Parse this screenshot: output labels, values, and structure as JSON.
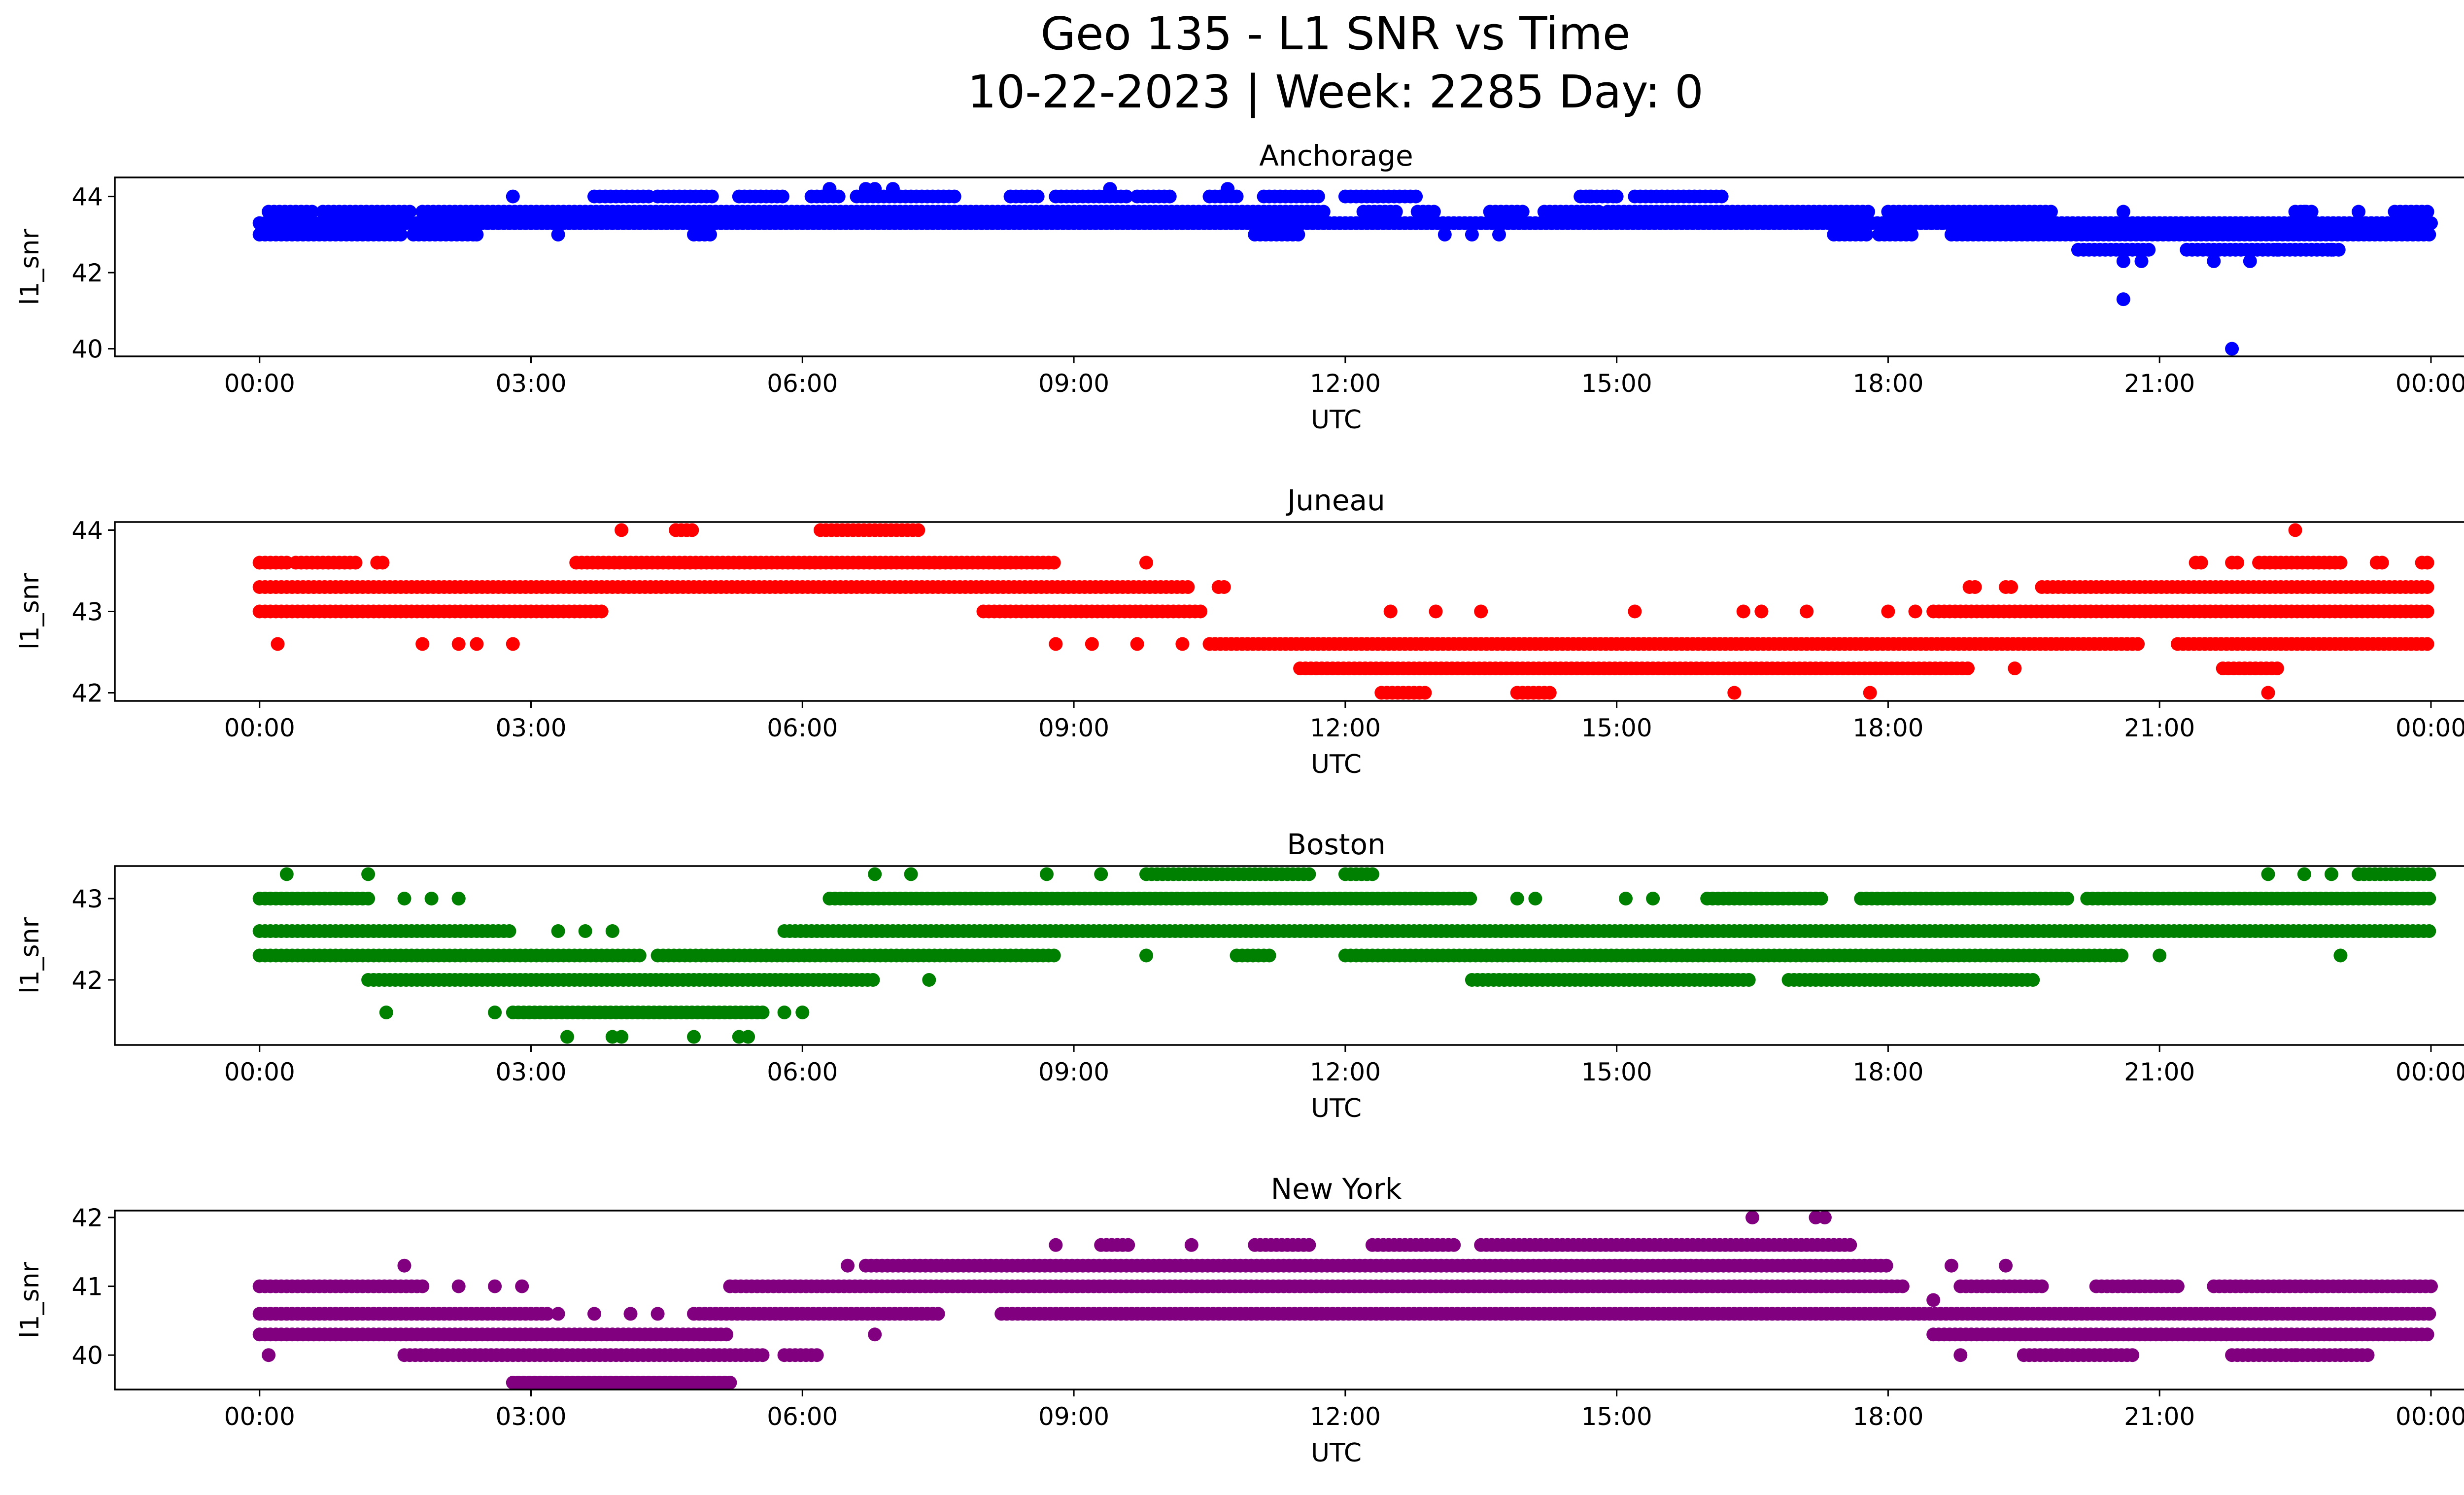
{
  "figure": {
    "title_line1": "Geo 135 - L1 SNR vs Time",
    "title_line2": "10-22-2023 | Week: 2285 Day: 0"
  },
  "chart_data": [
    {
      "type": "scatter",
      "title": "Anchorage",
      "xlabel": "UTC",
      "ylabel": "l1_snr",
      "color": "#0000ff",
      "xlim_hours": [
        -1.6,
        25.4
      ],
      "ylim": [
        39.8,
        44.5
      ],
      "yticks": [
        40,
        42,
        44
      ],
      "xticks": [
        "00:00",
        "03:00",
        "06:00",
        "09:00",
        "12:00",
        "15:00",
        "18:00",
        "21:00",
        "00:00"
      ],
      "bands": [
        {
          "y": 43.0,
          "segments": [
            [
              0.0,
              1.6
            ],
            [
              1.7,
              2.4
            ],
            [
              4.8,
              5.0
            ],
            [
              11.0,
              11.5
            ],
            [
              17.4,
              17.8
            ],
            [
              17.9,
              18.3
            ],
            [
              18.7,
              24.0
            ]
          ]
        },
        {
          "y": 43.3,
          "segments": [
            [
              0.0,
              24.0
            ]
          ]
        },
        {
          "y": 43.6,
          "segments": [
            [
              0.1,
              0.6
            ],
            [
              0.7,
              1.7
            ],
            [
              1.8,
              11.8
            ],
            [
              12.2,
              12.6
            ],
            [
              12.8,
              13.0
            ],
            [
              13.6,
              14.0
            ],
            [
              14.2,
              14.8
            ],
            [
              14.9,
              17.8
            ],
            [
              18.0,
              19.8
            ],
            [
              22.5,
              22.7
            ],
            [
              23.6,
              24.0
            ]
          ]
        },
        {
          "y": 44.0,
          "segments": [
            [
              3.7,
              4.3
            ],
            [
              4.4,
              5.0
            ],
            [
              5.3,
              5.8
            ],
            [
              6.1,
              6.4
            ],
            [
              6.6,
              7.7
            ],
            [
              8.3,
              8.6
            ],
            [
              8.8,
              9.6
            ],
            [
              9.7,
              10.1
            ],
            [
              10.5,
              10.8
            ],
            [
              11.1,
              11.7
            ],
            [
              12.0,
              12.8
            ],
            [
              14.6,
              15.0
            ],
            [
              15.2,
              16.2
            ]
          ]
        },
        {
          "y": 42.6,
          "segments": [
            [
              20.1,
              20.9
            ],
            [
              21.3,
              23.0
            ]
          ]
        }
      ],
      "points": [
        [
          2.8,
          44.0
        ],
        [
          3.3,
          43.0
        ],
        [
          2.4,
          43.0
        ],
        [
          6.3,
          44.2
        ],
        [
          6.7,
          44.2
        ],
        [
          6.8,
          44.2
        ],
        [
          7.0,
          44.2
        ],
        [
          9.4,
          44.2
        ],
        [
          10.7,
          44.2
        ],
        [
          13.1,
          43.0
        ],
        [
          13.4,
          43.0
        ],
        [
          13.7,
          43.0
        ],
        [
          14.7,
          44.0
        ],
        [
          15.0,
          44.0
        ],
        [
          20.6,
          43.6
        ],
        [
          20.6,
          42.3
        ],
        [
          20.8,
          42.3
        ],
        [
          21.6,
          42.3
        ],
        [
          22.0,
          42.3
        ],
        [
          22.3,
          42.6
        ],
        [
          20.6,
          41.3
        ],
        [
          21.8,
          40.0
        ],
        [
          22.6,
          43.6
        ],
        [
          22.9,
          42.6
        ],
        [
          23.2,
          43.6
        ]
      ]
    },
    {
      "type": "scatter",
      "title": "Juneau",
      "xlabel": "UTC",
      "ylabel": "l1_snr",
      "color": "#ff0000",
      "xlim_hours": [
        -1.6,
        25.4
      ],
      "ylim": [
        41.9,
        44.1
      ],
      "yticks": [
        42,
        43,
        44
      ],
      "xticks": [
        "00:00",
        "03:00",
        "06:00",
        "09:00",
        "12:00",
        "15:00",
        "18:00",
        "21:00",
        "00:00"
      ],
      "bands": [
        {
          "y": 43.6,
          "segments": [
            [
              0.0,
              0.3
            ],
            [
              0.4,
              1.1
            ],
            [
              1.3,
              1.4
            ],
            [
              3.5,
              8.8
            ],
            [
              21.4,
              21.5
            ],
            [
              21.8,
              21.9
            ],
            [
              22.1,
              23.0
            ],
            [
              23.4,
              23.5
            ],
            [
              23.9,
              24.0
            ]
          ]
        },
        {
          "y": 43.3,
          "segments": [
            [
              0.0,
              10.3
            ],
            [
              10.6,
              10.7
            ],
            [
              18.9,
              19.0
            ],
            [
              19.3,
              19.4
            ],
            [
              19.7,
              24.0
            ]
          ]
        },
        {
          "y": 43.0,
          "segments": [
            [
              0.0,
              3.8
            ],
            [
              8.0,
              10.4
            ],
            [
              18.5,
              24.0
            ]
          ]
        },
        {
          "y": 42.6,
          "segments": [
            [
              10.5,
              20.8
            ],
            [
              21.2,
              24.0
            ]
          ]
        },
        {
          "y": 42.3,
          "segments": [
            [
              11.5,
              18.9
            ],
            [
              21.7,
              22.3
            ]
          ]
        },
        {
          "y": 44.0,
          "segments": [
            [
              4.6,
              4.8
            ],
            [
              6.2,
              7.3
            ]
          ]
        },
        {
          "y": 42.0,
          "segments": [
            [
              12.4,
              12.9
            ],
            [
              13.9,
              14.3
            ]
          ]
        }
      ],
      "points": [
        [
          0.2,
          42.6
        ],
        [
          1.8,
          42.6
        ],
        [
          2.2,
          42.6
        ],
        [
          2.4,
          42.6
        ],
        [
          2.8,
          42.6
        ],
        [
          4.0,
          44.0
        ],
        [
          4.6,
          44.0
        ],
        [
          9.8,
          43.6
        ],
        [
          10.6,
          43.3
        ],
        [
          8.8,
          42.6
        ],
        [
          9.2,
          42.6
        ],
        [
          9.7,
          42.6
        ],
        [
          10.2,
          42.6
        ],
        [
          12.5,
          43.0
        ],
        [
          13.0,
          43.0
        ],
        [
          13.5,
          43.0
        ],
        [
          15.2,
          43.0
        ],
        [
          16.4,
          43.0
        ],
        [
          16.6,
          43.0
        ],
        [
          17.1,
          43.0
        ],
        [
          18.0,
          43.0
        ],
        [
          18.3,
          43.0
        ],
        [
          19.4,
          42.3
        ],
        [
          16.3,
          42.0
        ],
        [
          17.8,
          42.0
        ],
        [
          22.2,
          42.0
        ],
        [
          22.5,
          44.0
        ]
      ]
    },
    {
      "type": "scatter",
      "title": "Boston",
      "xlabel": "UTC",
      "ylabel": "l1_snr",
      "color": "#008000",
      "xlim_hours": [
        -1.6,
        25.4
      ],
      "ylim": [
        41.2,
        43.4
      ],
      "yticks": [
        42,
        43
      ],
      "xticks": [
        "00:00",
        "03:00",
        "06:00",
        "09:00",
        "12:00",
        "15:00",
        "18:00",
        "21:00",
        "00:00"
      ],
      "bands": [
        {
          "y": 43.0,
          "segments": [
            [
              0.0,
              1.2
            ],
            [
              6.3,
              13.4
            ],
            [
              16.0,
              17.3
            ],
            [
              17.7,
              20.0
            ],
            [
              20.2,
              24.0
            ]
          ]
        },
        {
          "y": 42.6,
          "segments": [
            [
              0.0,
              2.8
            ],
            [
              5.8,
              24.0
            ]
          ]
        },
        {
          "y": 42.3,
          "segments": [
            [
              0.0,
              4.2
            ],
            [
              4.4,
              8.8
            ],
            [
              10.8,
              11.2
            ],
            [
              12.0,
              20.6
            ]
          ]
        },
        {
          "y": 42.0,
          "segments": [
            [
              1.2,
              6.8
            ],
            [
              13.4,
              16.5
            ],
            [
              16.9,
              19.6
            ]
          ]
        },
        {
          "y": 41.6,
          "segments": [
            [
              2.8,
              5.6
            ]
          ]
        },
        {
          "y": 43.3,
          "segments": [
            [
              9.8,
              11.6
            ],
            [
              12.0,
              12.3
            ],
            [
              23.2,
              24.0
            ]
          ]
        }
      ],
      "points": [
        [
          0.3,
          43.3
        ],
        [
          1.2,
          43.3
        ],
        [
          6.8,
          43.3
        ],
        [
          7.2,
          43.3
        ],
        [
          8.7,
          43.3
        ],
        [
          9.3,
          43.3
        ],
        [
          22.2,
          43.3
        ],
        [
          22.6,
          43.3
        ],
        [
          22.9,
          43.3
        ],
        [
          1.6,
          43.0
        ],
        [
          1.9,
          43.0
        ],
        [
          2.2,
          43.0
        ],
        [
          2.2,
          43.0
        ],
        [
          1.4,
          41.6
        ],
        [
          2.6,
          41.6
        ],
        [
          5.8,
          41.6
        ],
        [
          6.0,
          41.6
        ],
        [
          3.4,
          41.3
        ],
        [
          3.9,
          41.3
        ],
        [
          4.0,
          41.3
        ],
        [
          4.8,
          41.3
        ],
        [
          5.3,
          41.3
        ],
        [
          5.4,
          41.3
        ],
        [
          7.4,
          42.0
        ],
        [
          9.8,
          42.3
        ],
        [
          13.9,
          43.0
        ],
        [
          14.1,
          43.0
        ],
        [
          15.1,
          43.0
        ],
        [
          15.4,
          43.0
        ],
        [
          3.3,
          42.6
        ],
        [
          3.6,
          42.6
        ],
        [
          3.9,
          42.6
        ],
        [
          21.0,
          42.3
        ],
        [
          23.0,
          42.3
        ]
      ]
    },
    {
      "type": "scatter",
      "title": "New York",
      "xlabel": "UTC",
      "ylabel": "l1_snr",
      "color": "#800080",
      "xlim_hours": [
        -1.6,
        25.4
      ],
      "ylim": [
        39.5,
        42.1
      ],
      "yticks": [
        40,
        41,
        42
      ],
      "xticks": [
        "00:00",
        "03:00",
        "06:00",
        "09:00",
        "12:00",
        "15:00",
        "18:00",
        "21:00",
        "00:00"
      ],
      "bands": [
        {
          "y": 41.0,
          "segments": [
            [
              0.0,
              1.8
            ],
            [
              5.2,
              18.2
            ],
            [
              18.8,
              19.7
            ],
            [
              20.3,
              21.2
            ],
            [
              21.6,
              24.0
            ]
          ]
        },
        {
          "y": 40.6,
          "segments": [
            [
              0.0,
              3.2
            ],
            [
              4.8,
              7.5
            ],
            [
              8.2,
              24.0
            ]
          ]
        },
        {
          "y": 40.3,
          "segments": [
            [
              0.0,
              5.2
            ],
            [
              18.5,
              24.0
            ]
          ]
        },
        {
          "y": 40.0,
          "segments": [
            [
              1.6,
              5.6
            ],
            [
              5.8,
              6.2
            ],
            [
              19.5,
              20.7
            ],
            [
              21.8,
              23.3
            ]
          ]
        },
        {
          "y": 39.6,
          "segments": [
            [
              2.8,
              5.2
            ]
          ]
        },
        {
          "y": 41.3,
          "segments": [
            [
              6.7,
              18.0
            ]
          ]
        },
        {
          "y": 41.6,
          "segments": [
            [
              9.3,
              9.6
            ],
            [
              11.0,
              11.6
            ],
            [
              12.3,
              13.2
            ],
            [
              13.5,
              17.6
            ]
          ]
        }
      ],
      "points": [
        [
          0.1,
          40.0
        ],
        [
          1.6,
          41.3
        ],
        [
          2.2,
          41.0
        ],
        [
          2.6,
          41.0
        ],
        [
          2.9,
          41.0
        ],
        [
          3.7,
          40.6
        ],
        [
          3.3,
          40.6
        ],
        [
          4.1,
          40.6
        ],
        [
          4.4,
          40.6
        ],
        [
          6.5,
          41.3
        ],
        [
          6.8,
          40.3
        ],
        [
          8.8,
          41.6
        ],
        [
          10.3,
          41.6
        ],
        [
          16.5,
          42.0
        ],
        [
          17.2,
          42.0
        ],
        [
          17.3,
          42.0
        ],
        [
          18.5,
          40.8
        ],
        [
          18.7,
          41.3
        ],
        [
          19.3,
          41.3
        ],
        [
          18.8,
          40.0
        ],
        [
          22.5,
          40.0
        ],
        [
          23.0,
          40.0
        ]
      ]
    }
  ]
}
